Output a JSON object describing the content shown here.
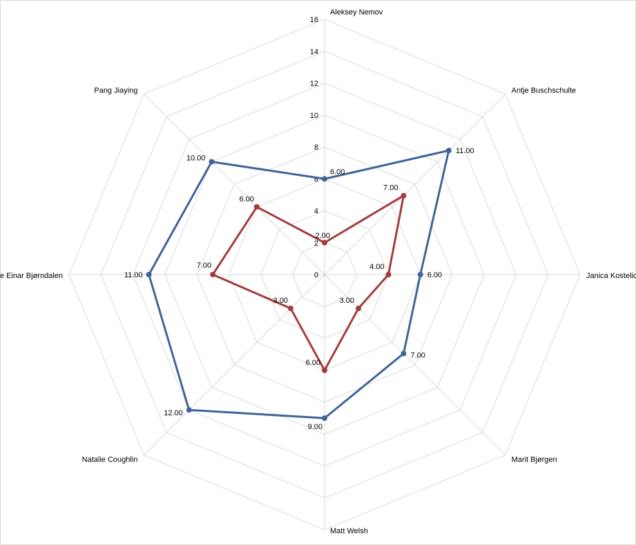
{
  "chart_data": {
    "type": "radar",
    "categories": [
      "Aleksey Nemov",
      "Antje Buschschulte",
      "Janica Kostelic",
      "Marit Bjørgen",
      "Matt Welsh",
      "Natalie Coughlin",
      "Ole Einar Bjørndalen",
      "Pang Jiaying"
    ],
    "series": [
      {
        "color": "#3e6499",
        "values": [
          6,
          11,
          6,
          7,
          9,
          12,
          11,
          10
        ],
        "labels": [
          "6.00",
          "11.00",
          "6.00",
          "7.00",
          "9.00",
          "12.00",
          "11.00",
          "10.00"
        ]
      },
      {
        "color": "#a33c3c",
        "values": [
          2,
          7,
          4,
          3,
          6,
          3,
          7,
          6
        ],
        "labels": [
          "2.00",
          "7.00",
          "4.00",
          "3.00",
          "6.00",
          "3.00",
          "7.00",
          "6.00"
        ]
      }
    ],
    "rlim": [
      0,
      16
    ],
    "ticks": [
      0,
      2,
      4,
      6,
      8,
      10,
      12,
      14,
      16
    ],
    "tick_labels": [
      "0",
      "2",
      "4",
      "6",
      "8",
      "10",
      "12",
      "14",
      "16"
    ],
    "grid": true
  }
}
